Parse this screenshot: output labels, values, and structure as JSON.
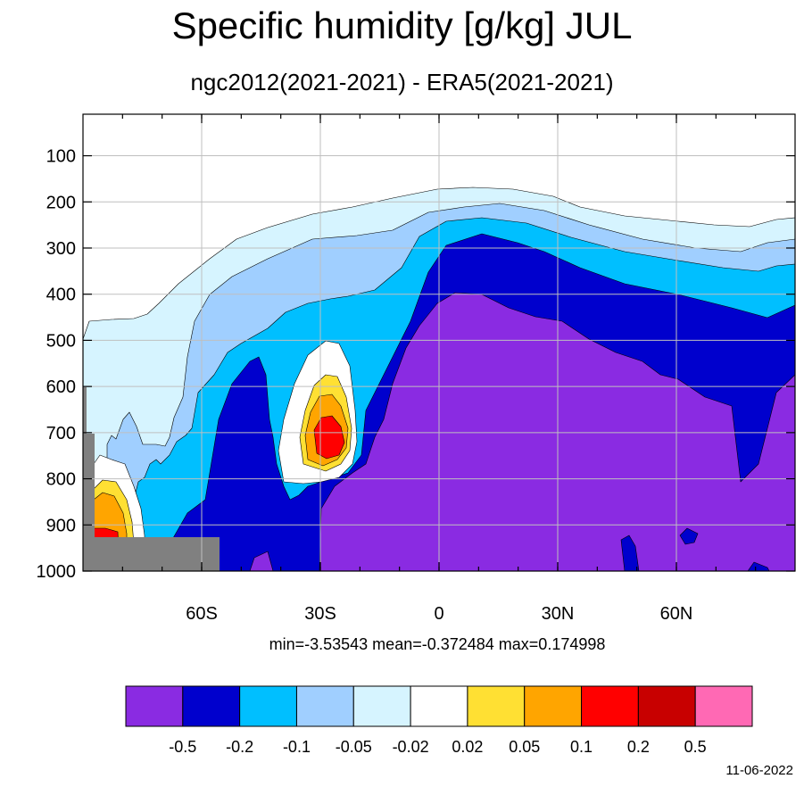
{
  "chart_data": {
    "type": "heatmap",
    "title": "Specific humidity [g/kg] JUL",
    "subtitle": "ngc2012(2021-2021) - ERA5(2021-2021)",
    "x_ticks": [
      {
        "value": -60,
        "label": "60S"
      },
      {
        "value": -30,
        "label": "30S"
      },
      {
        "value": 0,
        "label": "0"
      },
      {
        "value": 30,
        "label": "30N"
      },
      {
        "value": 60,
        "label": "60N"
      }
    ],
    "y_ticks": [
      100,
      200,
      300,
      400,
      500,
      600,
      700,
      800,
      900,
      1000
    ],
    "xlim": [
      -90,
      90
    ],
    "ylim": [
      1000,
      10
    ],
    "stats": "min=-3.53543   mean=-0.372484   max=0.174998",
    "colorbar": {
      "levels": [
        "-0.5",
        "-0.2",
        "-0.1",
        "-0.05",
        "-0.02",
        "0.02",
        "0.05",
        "0.1",
        "0.2",
        "0.5"
      ],
      "colors": [
        "#8a2be2",
        "#0000cd",
        "#00bfff",
        "#a0cfff",
        "#d6f4ff",
        "#ffffff",
        "#ffe033",
        "#ffa500",
        "#ff0000",
        "#c80000",
        "#ff69b4"
      ]
    },
    "missing_color": "#808080",
    "grid": true
  },
  "footer": {
    "date": "11-06-2022"
  }
}
